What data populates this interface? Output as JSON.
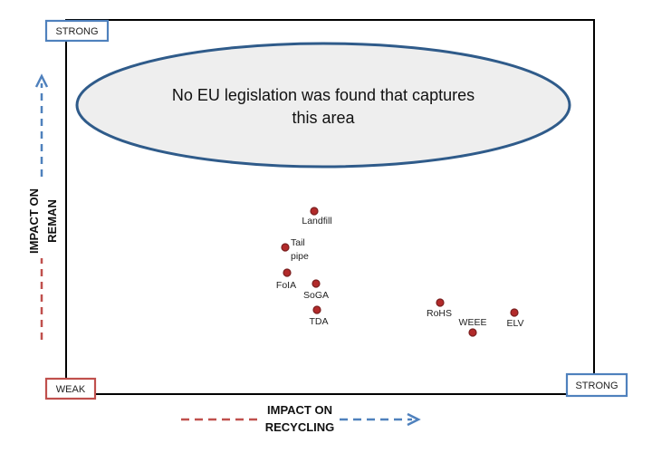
{
  "colors": {
    "weak": "#c0504d",
    "strong": "#4f81bd",
    "point": "#b22a2a",
    "ellipse_stroke": "#2f5b8a",
    "ellipse_fill": "#eeeeee"
  },
  "corners": {
    "top_left": "STRONG",
    "bottom_left": "WEAK",
    "bottom_right": "STRONG"
  },
  "region": {
    "line1": "No EU legislation was found that captures",
    "line2": "this area"
  },
  "axes": {
    "y_title_line1": "IMPACT ON",
    "y_title_line2": "REMAN",
    "x_title_line1": "IMPACT ON",
    "x_title_line2": "RECYCLING"
  },
  "points": [
    {
      "label_lines": [
        "Landfill"
      ]
    },
    {
      "label_lines": [
        "Tail",
        "pipe"
      ]
    },
    {
      "label_lines": [
        "FoIA"
      ]
    },
    {
      "label_lines": [
        "SoGA"
      ]
    },
    {
      "label_lines": [
        "TDA"
      ]
    },
    {
      "label_lines": [
        "RoHS"
      ]
    },
    {
      "label_lines": [
        "WEEE"
      ]
    },
    {
      "label_lines": [
        "ELV"
      ]
    }
  ]
}
